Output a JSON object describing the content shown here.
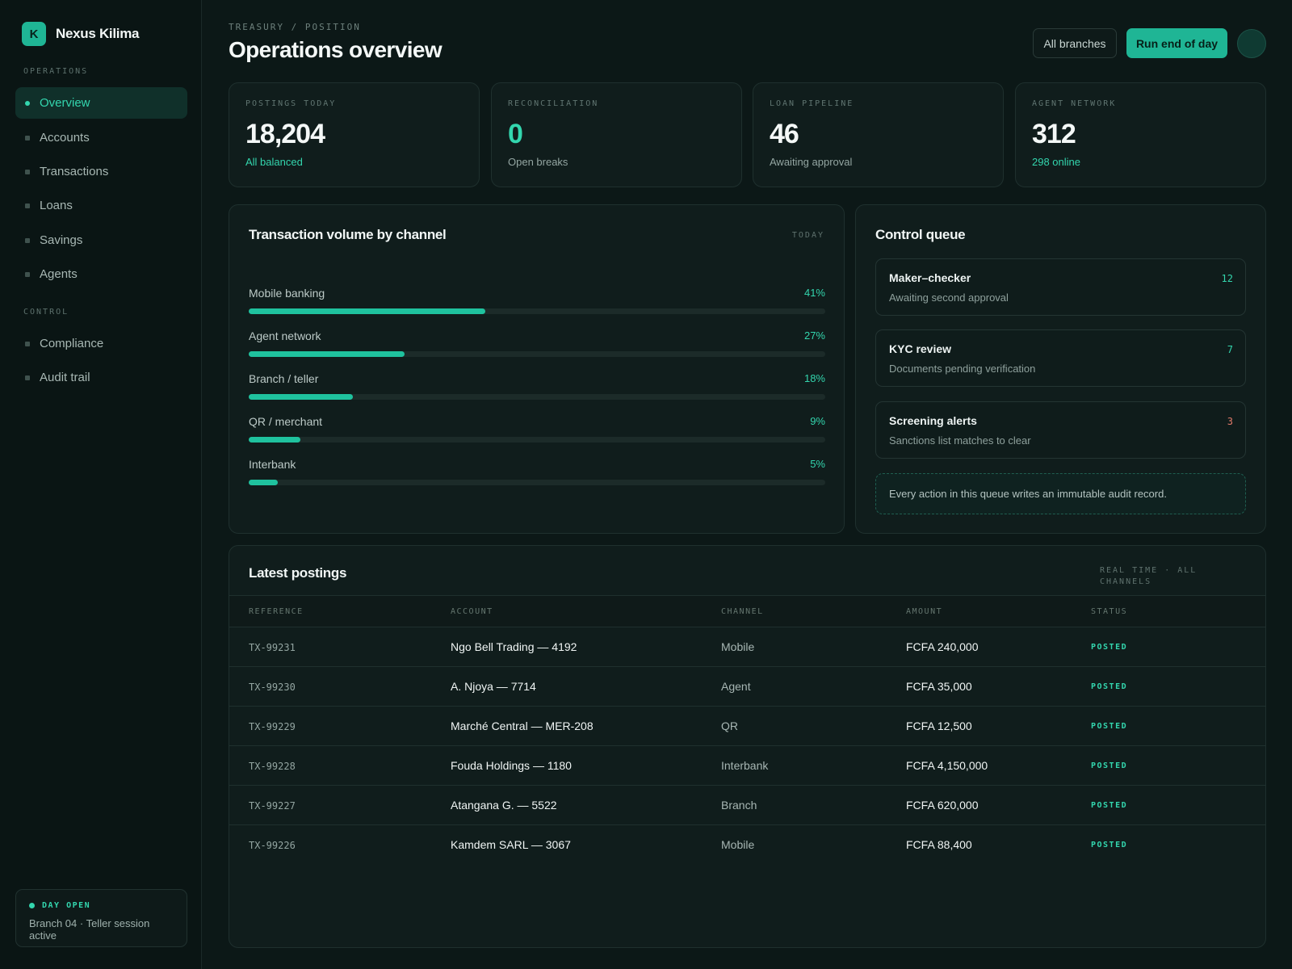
{
  "brand": {
    "logo_letter": "K",
    "name": "Nexus Kilima"
  },
  "sidebar": {
    "section_operations": "OPERATIONS",
    "operations": [
      "Overview",
      "Accounts",
      "Transactions",
      "Loans",
      "Savings",
      "Agents"
    ],
    "section_control": "CONTROL",
    "control": [
      "Compliance",
      "Audit trail"
    ],
    "day_status": "DAY OPEN",
    "day_text": "Branch 04 · Teller session active"
  },
  "header": {
    "breadcrumb": "TREASURY / POSITION",
    "title": "Operations overview",
    "branches_button": "All branches",
    "eod_button": "Run end of day"
  },
  "kpis": [
    {
      "label": "POSTINGS TODAY",
      "value": "18,204",
      "sub": "All balanced"
    },
    {
      "label": "RECONCILIATION",
      "value": "0",
      "sub": "Open breaks"
    },
    {
      "label": "LOAN PIPELINE",
      "value": "46",
      "sub": "Awaiting approval"
    },
    {
      "label": "AGENT NETWORK",
      "value": "312",
      "sub": "298 online"
    }
  ],
  "volume": {
    "title": "Transaction volume by channel",
    "period": "TODAY",
    "channels": [
      {
        "name": "Mobile banking",
        "pct_label": "41%",
        "pct": 41
      },
      {
        "name": "Agent network",
        "pct_label": "27%",
        "pct": 27
      },
      {
        "name": "Branch / teller",
        "pct_label": "18%",
        "pct": 18
      },
      {
        "name": "QR / merchant",
        "pct_label": "9%",
        "pct": 9
      },
      {
        "name": "Interbank",
        "pct_label": "5%",
        "pct": 5
      }
    ]
  },
  "queue": {
    "title": "Control queue",
    "items": [
      {
        "title": "Maker–checker",
        "sub": "Awaiting second approval",
        "count": "12"
      },
      {
        "title": "KYC review",
        "sub": "Documents pending verification",
        "count": "7"
      },
      {
        "title": "Screening alerts",
        "sub": "Sanctions list matches to clear",
        "count": "3"
      }
    ],
    "note": "Every action in this queue writes an immutable audit record."
  },
  "postings": {
    "title": "Latest postings",
    "meta": "REAL TIME · ALL CHANNELS",
    "columns": [
      "REFERENCE",
      "ACCOUNT",
      "CHANNEL",
      "AMOUNT",
      "STATUS"
    ],
    "rows": [
      {
        "ref": "TX-99231",
        "account": "Ngo Bell Trading — 4192",
        "channel": "Mobile",
        "amount": "FCFA 240,000",
        "status": "POSTED"
      },
      {
        "ref": "TX-99230",
        "account": "A. Njoya — 7714",
        "channel": "Agent",
        "amount": "FCFA 35,000",
        "status": "POSTED"
      },
      {
        "ref": "TX-99229",
        "account": "Marché Central — MER-208",
        "channel": "QR",
        "amount": "FCFA 12,500",
        "status": "POSTED"
      },
      {
        "ref": "TX-99228",
        "account": "Fouda Holdings — 1180",
        "channel": "Interbank",
        "amount": "FCFA 4,150,000",
        "status": "POSTED"
      },
      {
        "ref": "TX-99227",
        "account": "Atangana G. — 5522",
        "channel": "Branch",
        "amount": "FCFA 620,000",
        "status": "POSTED"
      },
      {
        "ref": "TX-99226",
        "account": "Kamdem SARL — 3067",
        "channel": "Mobile",
        "amount": "FCFA 88,400",
        "status": "POSTED"
      }
    ]
  },
  "colors": {
    "accent": "#33d6ae",
    "bar_fill": "#1fc29e",
    "count_default": "#33d6ae",
    "count_alert": "#e07a6a"
  }
}
